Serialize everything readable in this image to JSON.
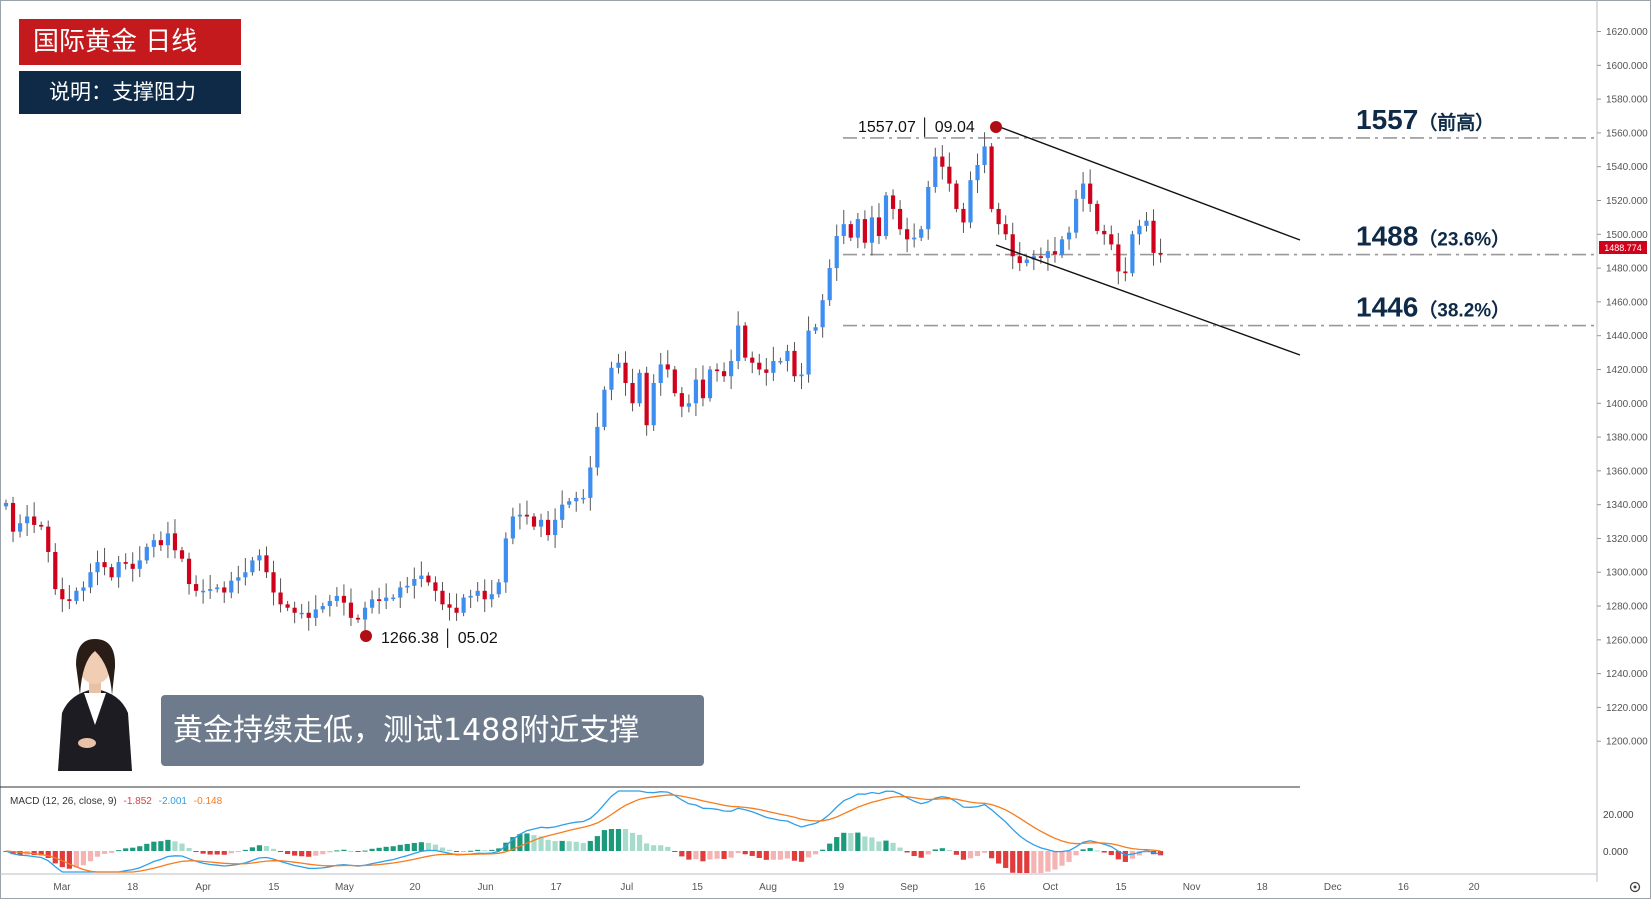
{
  "title_badge": "国际黄金  日线",
  "subtitle_badge": "说明：支撑阻力",
  "caption": "黄金持续走低，测试1488附近支撑",
  "annotations": {
    "high_label": "1557.07 │ 09.04",
    "low_label": "1266.38 │ 05.02",
    "current_price_tag": "1488.774"
  },
  "levels": [
    {
      "price": 1557,
      "label_main": "1557",
      "label_sub": "（前高）"
    },
    {
      "price": 1488,
      "label_main": "1488",
      "label_sub": "（23.6%）"
    },
    {
      "price": 1446,
      "label_main": "1446",
      "label_sub": "（38.2%）"
    }
  ],
  "macd": {
    "label": "MACD (12, 26, close, 9)",
    "hist_value": "-1.852",
    "macd_value": "-2.001",
    "signal_value": "-0.148",
    "axis_labels": [
      "20.000",
      "0.000"
    ]
  },
  "colors": {
    "up": "#3d8ef0",
    "down": "#d0021b",
    "title_bg": "#c41a1e",
    "subtitle_bg": "#0e2a47",
    "caption_bg": "#6d7b8d",
    "level_line": "#999999",
    "label_text": "#0e2a47",
    "macd_line": "#2f9fe8",
    "signal_line": "#f57c1f",
    "hist_up_strong": "#1c9a7c",
    "hist_up_weak": "#a7dccd",
    "hist_down_strong": "#e03c3c",
    "hist_down_weak": "#f5b4b4"
  },
  "chart_data": {
    "type": "candlestick",
    "y_axis_ticks": [
      1200,
      1220,
      1240,
      1260,
      1280,
      1300,
      1320,
      1340,
      1360,
      1380,
      1400,
      1420,
      1440,
      1460,
      1480,
      1500,
      1520,
      1540,
      1560,
      1580,
      1600,
      1620
    ],
    "y_tick_labels": [
      "1200.000",
      "1220.000",
      "1240.000",
      "1260.000",
      "1280.000",
      "1300.000",
      "1320.000",
      "1340.000",
      "1360.000",
      "1380.000",
      "1400.000",
      "1420.000",
      "1440.000",
      "1460.000",
      "1480.000",
      "1500.000",
      "1520.000",
      "1540.000",
      "1560.000",
      "1580.000",
      "1600.000",
      "1620.000"
    ],
    "x_tick_labels": [
      "Mar",
      "18",
      "Apr",
      "15",
      "May",
      "20",
      "Jun",
      "17",
      "Jul",
      "15",
      "Aug",
      "19",
      "Sep",
      "16",
      "Oct",
      "15",
      "Nov",
      "18",
      "Dec",
      "16",
      "20"
    ],
    "ylim": [
      1180,
      1628
    ],
    "candles_close": [
      1341,
      1324,
      1329,
      1333,
      1328,
      1327,
      1312,
      1290,
      1284,
      1283,
      1289,
      1291,
      1300,
      1306,
      1303,
      1297,
      1306,
      1305,
      1302,
      1307,
      1315,
      1319,
      1316,
      1323,
      1313,
      1308,
      1293,
      1289,
      1289,
      1290,
      1291,
      1288,
      1295,
      1297,
      1300,
      1307,
      1310,
      1300,
      1288,
      1281,
      1279,
      1276,
      1276,
      1273,
      1278,
      1280,
      1283,
      1286,
      1282,
      1273,
      1272,
      1279,
      1284,
      1283,
      1285,
      1285,
      1291,
      1292,
      1296,
      1298,
      1294,
      1289,
      1281,
      1279,
      1276,
      1285,
      1286,
      1289,
      1284,
      1287,
      1294,
      1320,
      1333,
      1334,
      1333,
      1327,
      1331,
      1322,
      1331,
      1340,
      1342,
      1344,
      1344,
      1362,
      1386,
      1408,
      1421,
      1424,
      1412,
      1400,
      1418,
      1387,
      1412,
      1423,
      1420,
      1406,
      1398,
      1400,
      1414,
      1403,
      1420,
      1419,
      1416,
      1425,
      1446,
      1427,
      1424,
      1420,
      1418,
      1425,
      1425,
      1431,
      1416,
      1417,
      1443,
      1445,
      1461,
      1480,
      1499,
      1506,
      1498,
      1509,
      1495,
      1510,
      1499,
      1523,
      1515,
      1503,
      1497,
      1498,
      1503,
      1528,
      1546,
      1540,
      1530,
      1515,
      1507,
      1532,
      1541,
      1552,
      1515,
      1506,
      1500,
      1487,
      1483,
      1485,
      1487,
      1486,
      1490,
      1488,
      1497,
      1501,
      1521,
      1530,
      1518,
      1502,
      1500,
      1494,
      1478,
      1477,
      1500,
      1505,
      1508,
      1489,
      1488
    ]
  }
}
